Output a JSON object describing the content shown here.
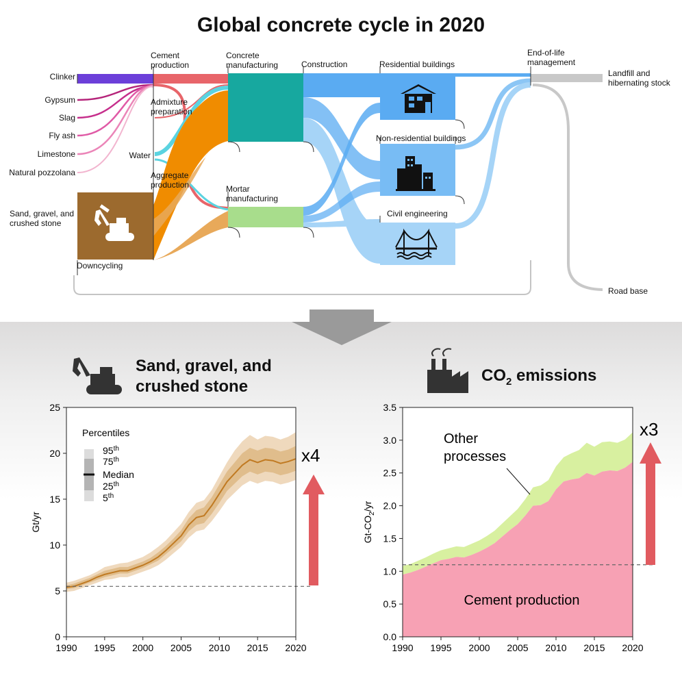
{
  "title": "Global concrete cycle in 2020",
  "sankey": {
    "inputs": [
      "Clinker",
      "Gypsum",
      "Slag",
      "Fly ash",
      "Limestone",
      "Natural pozzolana",
      "Water",
      "Sand, gravel, and",
      "crushed stone"
    ],
    "stages": {
      "cement": [
        "Cement",
        "production"
      ],
      "admixture": [
        "Admixture",
        "preparation"
      ],
      "aggregate": [
        "Aggregate",
        "production"
      ],
      "concrete": [
        "Concrete",
        "manufacturing"
      ],
      "mortar": [
        "Mortar",
        "manufacturing"
      ],
      "construction": "Construction",
      "residential": "Residential buildings",
      "nonresidential": "Non-residential buildings",
      "civil": "Civil engineering",
      "eol": [
        "End-of-life",
        "management"
      ],
      "landfill": [
        "Landfill and",
        "hibernating stock"
      ],
      "roadbase": "Road base",
      "downcycling": "Downcycling"
    },
    "colors": {
      "clinker": "#6c3fd9",
      "cement": "#e8656a",
      "admixture": "#5bd3e0",
      "aggregate": "#f08c00",
      "aggregate_light": "#e8a95a",
      "sand": "#9c6a2e",
      "concrete": "#17a89f",
      "mortar": "#a8dd8c",
      "flow_blue": "#5aabf2",
      "flow_light": "#a6d4f7",
      "landfill": "#c8c8c8",
      "gray_line": "#c0c0c0"
    }
  },
  "sand_panel": {
    "title_lines": [
      "Sand, gravel, and",
      "crushed stone"
    ],
    "multiplier": "x4",
    "legend": {
      "title": "Percentiles",
      "items": [
        {
          "label": "95",
          "sup": "th"
        },
        {
          "label": "75",
          "sup": "th"
        },
        {
          "label": "Median",
          "sup": ""
        },
        {
          "label": "25",
          "sup": "th"
        },
        {
          "label": "5",
          "sup": "th"
        }
      ]
    }
  },
  "co2_panel": {
    "title_main": "CO",
    "title_sub": "2",
    "title_rest": " emissions",
    "multiplier": "x3",
    "label_other": [
      "Other",
      "processes"
    ],
    "label_cement": "Cement production"
  },
  "chart_data": [
    {
      "type": "area",
      "xlabel": "",
      "ylabel": "Gt/yr",
      "xlim": [
        1990,
        2020
      ],
      "ylim": [
        0,
        25
      ],
      "xticks": [
        1990,
        1995,
        2000,
        2005,
        2010,
        2015,
        2020
      ],
      "yticks": [
        0,
        5,
        10,
        15,
        20,
        25
      ],
      "baseline": 5.5,
      "x": [
        1990,
        1991,
        1992,
        1993,
        1994,
        1995,
        1996,
        1997,
        1998,
        1999,
        2000,
        2001,
        2002,
        2003,
        2004,
        2005,
        2006,
        2007,
        2008,
        2009,
        2010,
        2011,
        2012,
        2013,
        2014,
        2015,
        2016,
        2017,
        2018,
        2019,
        2020
      ],
      "series": [
        {
          "name": "Median",
          "values": [
            5.4,
            5.5,
            5.8,
            6.1,
            6.5,
            6.8,
            7.0,
            7.2,
            7.2,
            7.5,
            7.8,
            8.2,
            8.7,
            9.4,
            10.2,
            11.0,
            12.2,
            13.0,
            13.2,
            14.3,
            15.6,
            16.9,
            17.8,
            18.7,
            19.3,
            19.0,
            19.3,
            19.2,
            18.9,
            19.1,
            19.4
          ]
        },
        {
          "name": "25th",
          "values": [
            5.2,
            5.3,
            5.6,
            5.9,
            6.2,
            6.5,
            6.7,
            6.9,
            6.9,
            7.2,
            7.5,
            7.9,
            8.3,
            9.0,
            9.7,
            10.4,
            11.5,
            12.2,
            12.4,
            13.4,
            14.6,
            15.9,
            16.7,
            17.5,
            18.0,
            17.7,
            18.0,
            17.9,
            17.6,
            17.8,
            18.1
          ]
        },
        {
          "name": "75th",
          "values": [
            5.6,
            5.8,
            6.1,
            6.4,
            6.8,
            7.2,
            7.4,
            7.6,
            7.6,
            7.9,
            8.2,
            8.6,
            9.2,
            9.9,
            10.7,
            11.6,
            12.9,
            13.8,
            14.1,
            15.2,
            16.6,
            18.0,
            19.0,
            20.0,
            20.6,
            20.3,
            20.6,
            20.5,
            20.2,
            20.4,
            20.8
          ]
        },
        {
          "name": "5th",
          "values": [
            4.9,
            5.0,
            5.3,
            5.6,
            5.9,
            6.2,
            6.3,
            6.5,
            6.5,
            6.8,
            7.1,
            7.4,
            7.8,
            8.4,
            9.1,
            9.8,
            10.8,
            11.5,
            11.7,
            12.6,
            13.7,
            14.9,
            15.7,
            16.5,
            17.0,
            16.7,
            17.0,
            16.9,
            16.6,
            16.8,
            17.1
          ]
        },
        {
          "name": "95th",
          "values": [
            5.9,
            6.1,
            6.4,
            6.7,
            7.1,
            7.6,
            7.8,
            8.0,
            8.1,
            8.4,
            8.7,
            9.2,
            9.8,
            10.5,
            11.4,
            12.3,
            13.6,
            14.6,
            14.9,
            16.0,
            17.5,
            19.0,
            20.3,
            21.3,
            22.0,
            21.5,
            21.9,
            21.8,
            21.5,
            21.8,
            22.3
          ]
        }
      ]
    },
    {
      "type": "area",
      "xlabel": "",
      "ylabel": "Gt-CO2/yr",
      "xlim": [
        1990,
        2020
      ],
      "ylim": [
        0,
        3.5
      ],
      "xticks": [
        1990,
        1995,
        2000,
        2005,
        2010,
        2015,
        2020
      ],
      "yticks": [
        0.0,
        0.5,
        1.0,
        1.5,
        2.0,
        2.5,
        3.0,
        3.5
      ],
      "baseline": 1.1,
      "x": [
        1990,
        1991,
        1992,
        1993,
        1994,
        1995,
        1996,
        1997,
        1998,
        1999,
        2000,
        2001,
        2002,
        2003,
        2004,
        2005,
        2006,
        2007,
        2008,
        2009,
        2010,
        2011,
        2012,
        2013,
        2014,
        2015,
        2016,
        2017,
        2018,
        2019,
        2020
      ],
      "series": [
        {
          "name": "Cement production",
          "values": [
            0.95,
            0.98,
            1.02,
            1.07,
            1.12,
            1.17,
            1.19,
            1.22,
            1.21,
            1.25,
            1.3,
            1.36,
            1.43,
            1.53,
            1.63,
            1.72,
            1.85,
            2.0,
            2.01,
            2.07,
            2.25,
            2.37,
            2.4,
            2.42,
            2.5,
            2.46,
            2.52,
            2.54,
            2.53,
            2.58,
            2.67
          ]
        },
        {
          "name": "Other processes",
          "values": [
            0.13,
            0.13,
            0.14,
            0.14,
            0.15,
            0.15,
            0.16,
            0.16,
            0.16,
            0.17,
            0.17,
            0.18,
            0.19,
            0.2,
            0.21,
            0.23,
            0.25,
            0.28,
            0.3,
            0.32,
            0.35,
            0.37,
            0.4,
            0.43,
            0.46,
            0.44,
            0.45,
            0.44,
            0.43,
            0.43,
            0.45
          ]
        }
      ]
    }
  ]
}
